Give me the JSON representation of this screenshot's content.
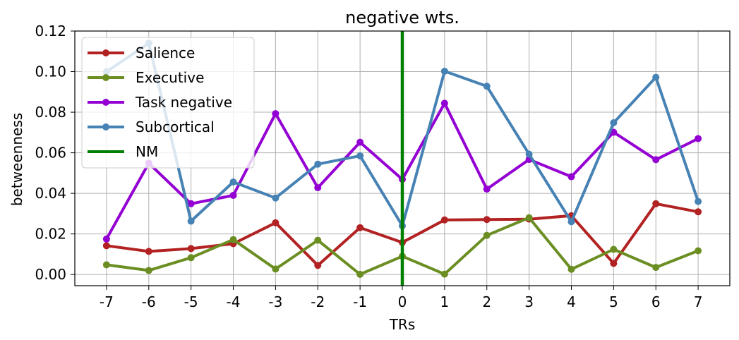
{
  "chart_data": {
    "type": "line",
    "title": "negative wts.",
    "xlabel": "TRs",
    "ylabel": "betweenness",
    "x": [
      -7,
      -6,
      -5,
      -4,
      -3,
      -2,
      -1,
      0,
      1,
      2,
      3,
      4,
      5,
      6,
      7
    ],
    "xlim": [
      -7.75,
      7.75
    ],
    "ylim": [
      -0.0055,
      0.12
    ],
    "xticks": [
      "-7",
      "-6",
      "-5",
      "-4",
      "-3",
      "-2",
      "-1",
      "0",
      "1",
      "2",
      "3",
      "4",
      "5",
      "6",
      "7"
    ],
    "yticks": [
      "0.00",
      "0.02",
      "0.04",
      "0.06",
      "0.08",
      "0.10",
      "0.12"
    ],
    "ytick_values": [
      0.0,
      0.02,
      0.04,
      0.06,
      0.08,
      0.1,
      0.12
    ],
    "grid": true,
    "legend_position": "upper-left",
    "series": [
      {
        "name": "Salience",
        "color": "#b22222",
        "values": [
          0.0142,
          0.0114,
          0.0128,
          0.0152,
          0.0255,
          0.0045,
          0.0231,
          0.0158,
          0.0269,
          0.0271,
          0.0273,
          0.029,
          0.0055,
          0.0349,
          0.0309
        ]
      },
      {
        "name": "Executive",
        "color": "#6b8e23",
        "values": [
          0.0048,
          0.002,
          0.0083,
          0.0172,
          0.0027,
          0.0169,
          0.0001,
          0.009,
          0.0002,
          0.0193,
          0.028,
          0.0026,
          0.0124,
          0.0035,
          0.0117
        ]
      },
      {
        "name": "Task negative",
        "color": "#9400d3",
        "values": [
          0.0175,
          0.0549,
          0.0349,
          0.039,
          0.0793,
          0.0428,
          0.0652,
          0.0469,
          0.0844,
          0.0421,
          0.0567,
          0.0482,
          0.0701,
          0.0566,
          0.067
        ]
      },
      {
        "name": "Subcortical",
        "color": "#4682b4",
        "values": [
          0.1,
          0.114,
          0.0263,
          0.0456,
          0.0377,
          0.0544,
          0.0585,
          0.024,
          0.1002,
          0.0928,
          0.0593,
          0.026,
          0.0748,
          0.0972,
          0.036
        ]
      }
    ],
    "vline": {
      "name": "NM",
      "x": 0,
      "color": "#008000"
    }
  }
}
